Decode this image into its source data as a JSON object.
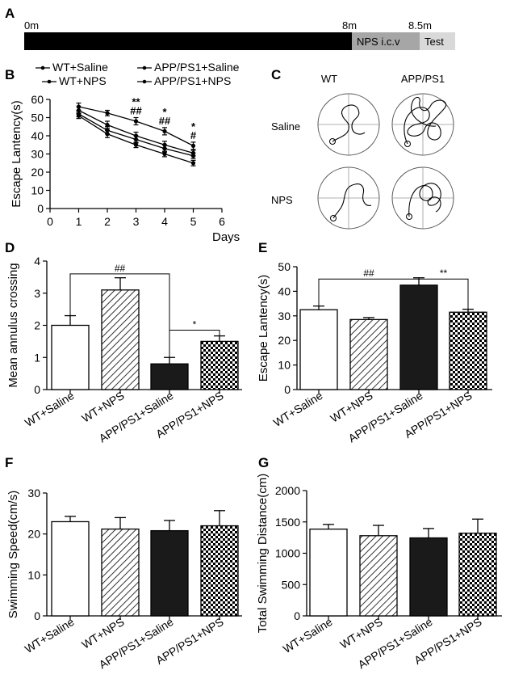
{
  "panel_letters": {
    "a": "A",
    "b": "B",
    "c": "C",
    "d": "D",
    "e": "E",
    "f": "F",
    "g": "G"
  },
  "timeline": {
    "t0": "0m",
    "t1": "8m",
    "t2": "8.5m",
    "seg1": "NPS i.c.v",
    "seg2": "Test"
  },
  "maze": {
    "col1": "WT",
    "col2": "APP/PS1",
    "row1": "Saline",
    "row2": "NPS"
  },
  "chart_data": [
    {
      "id": "B",
      "type": "line",
      "title": "",
      "xlabel": "Days",
      "ylabel": "Escape Lantency(s)",
      "xlim": [
        0,
        6
      ],
      "ylim": [
        0,
        60
      ],
      "x_ticks": [
        "0",
        "1",
        "2",
        "3",
        "4",
        "5",
        "6"
      ],
      "y_ticks": [
        "0",
        "10",
        "20",
        "30",
        "40",
        "50",
        "60"
      ],
      "x": [
        1,
        2,
        3,
        4,
        5
      ],
      "series": [
        {
          "name": "WT+Saline",
          "values": [
            51,
            41,
            35,
            30,
            25
          ],
          "errors": [
            1.5,
            2,
            1.5,
            1.5,
            1.5
          ]
        },
        {
          "name": "WT+NPS",
          "values": [
            52,
            43,
            38,
            33,
            29
          ],
          "errors": [
            1.5,
            2,
            2,
            2,
            1.5
          ]
        },
        {
          "name": "APP/PS1+Saline",
          "values": [
            56,
            52.5,
            48,
            42.5,
            34.5
          ],
          "errors": [
            2,
            1.5,
            2,
            2,
            2
          ]
        },
        {
          "name": "APP/PS1+NPS",
          "values": [
            54,
            46,
            40,
            35,
            30.5
          ],
          "errors": [
            2,
            2,
            2,
            2,
            1.5
          ]
        }
      ],
      "legend": [
        "WT+Saline",
        "APP/PS1+Saline",
        "WT+NPS",
        "APP/PS1+NPS"
      ],
      "annotations": [
        {
          "x": 3,
          "lines": [
            "**",
            "##"
          ]
        },
        {
          "x": 4,
          "lines": [
            "*",
            "##"
          ]
        },
        {
          "x": 5,
          "lines": [
            "*",
            "#"
          ]
        }
      ]
    },
    {
      "id": "D",
      "type": "bar",
      "ylabel": "Mean annulus crossing",
      "ylim": [
        0,
        4
      ],
      "y_ticks": [
        "0",
        "1",
        "2",
        "3",
        "4"
      ],
      "categories": [
        "WT+Saline",
        "WT+NPS",
        "APP/PS1+Saline",
        "APP/PS1+NPS"
      ],
      "values": [
        2.0,
        3.1,
        0.8,
        1.5
      ],
      "errors": [
        0.3,
        0.38,
        0.2,
        0.17
      ],
      "patterns": [
        "white",
        "hatch",
        "black",
        "check"
      ],
      "significance": [
        {
          "from": 0,
          "to": 2,
          "y": 3.6,
          "label": "##"
        },
        {
          "from": 2,
          "to": 3,
          "y": 1.85,
          "label": "*"
        }
      ]
    },
    {
      "id": "E",
      "type": "bar",
      "ylabel": "Escape Lantency(s)",
      "ylim": [
        0,
        50
      ],
      "y_ticks": [
        "0",
        "10",
        "20",
        "30",
        "40",
        "50"
      ],
      "categories": [
        "WT+Saline",
        "WT+NPS",
        "APP/PS1+Saline",
        "APP/PS1+NPS"
      ],
      "values": [
        32.5,
        28.5,
        42.5,
        31.5
      ],
      "errors": [
        1.5,
        0.8,
        3.0,
        1.2
      ],
      "patterns": [
        "white",
        "hatch",
        "black",
        "check"
      ],
      "significance": [
        {
          "from": 0,
          "to": 2,
          "y": 45,
          "label": "##"
        },
        {
          "from": 2,
          "to": 3,
          "y": 45,
          "label": "**"
        }
      ]
    },
    {
      "id": "F",
      "type": "bar",
      "ylabel": "Swimming Speed(cm/s)",
      "ylim": [
        0,
        30
      ],
      "y_ticks": [
        "0",
        "10",
        "20",
        "30"
      ],
      "categories": [
        "WT+Saline",
        "WT+NPS",
        "APP/PS1+Saline",
        "APP/PS1+NPS"
      ],
      "values": [
        23,
        21.2,
        20.8,
        22
      ],
      "errors": [
        1.3,
        2.8,
        2.5,
        3.7
      ],
      "patterns": [
        "white",
        "hatch",
        "black",
        "check"
      ],
      "significance": []
    },
    {
      "id": "G",
      "type": "bar",
      "ylabel": "Total Swimming Distance(cm)",
      "ylim": [
        0,
        2000
      ],
      "y_ticks": [
        "0",
        "500",
        "1000",
        "1500",
        "2000"
      ],
      "categories": [
        "WT+Saline",
        "WT+NPS",
        "APP/PS1+Saline",
        "APP/PS1+NPS"
      ],
      "values": [
        1385,
        1280,
        1245,
        1320
      ],
      "errors": [
        75,
        165,
        150,
        225
      ],
      "patterns": [
        "white",
        "hatch",
        "black",
        "check"
      ],
      "significance": []
    }
  ]
}
